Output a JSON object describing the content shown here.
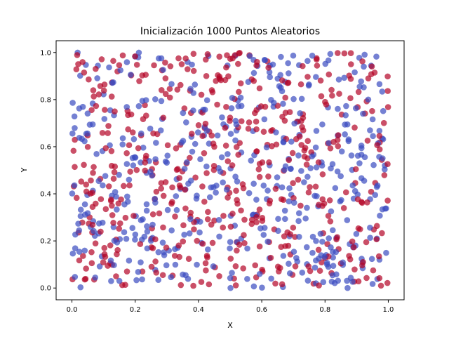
{
  "chart_data": {
    "type": "scatter",
    "title": "Inicialización 1000 Puntos Aleatorios",
    "xlabel": "X",
    "ylabel": "Y",
    "xlim": [
      -0.05,
      1.05
    ],
    "ylim": [
      -0.05,
      1.05
    ],
    "xticks": [
      0.0,
      0.2,
      0.4,
      0.6,
      0.8,
      1.0
    ],
    "yticks": [
      0.0,
      0.2,
      0.4,
      0.6,
      0.8,
      1.0
    ],
    "xtick_labels": [
      "0.0",
      "0.2",
      "0.4",
      "0.6",
      "0.8",
      "1.0"
    ],
    "ytick_labels": [
      "0.0",
      "0.2",
      "0.4",
      "0.6",
      "0.8",
      "1.0"
    ],
    "grid": false,
    "legend": false,
    "point_count": 1000,
    "point_alpha": 0.7,
    "colormap": "coolwarm",
    "classes": [
      {
        "label": 0,
        "color": "#3b4cc0"
      },
      {
        "label": 1,
        "color": "#b40426"
      }
    ],
    "distribution": "uniform",
    "x_range": [
      0.0,
      1.0
    ],
    "y_range": [
      0.0,
      1.0
    ]
  }
}
